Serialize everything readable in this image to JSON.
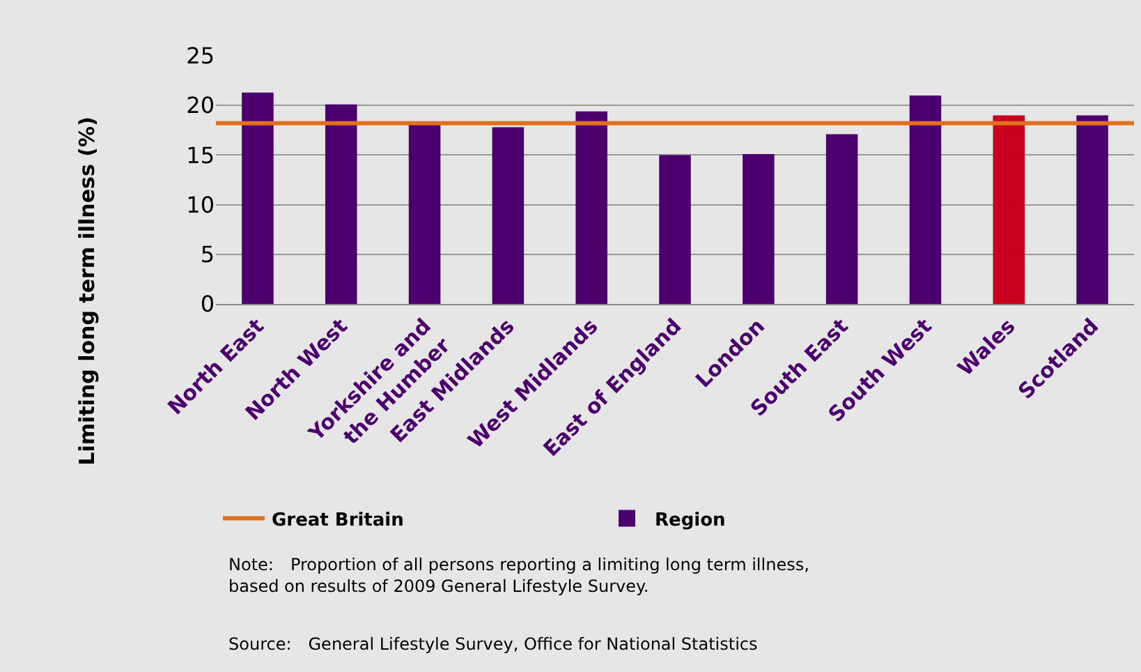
{
  "chart_data": {
    "type": "bar",
    "ylabel": "Limiting long term illness (%)",
    "categories": [
      "North East",
      "North West",
      "Yorkshire and\nthe Humber",
      "East Midlands",
      "West Midlands",
      "East of England",
      "London",
      "South East",
      "South West",
      "Wales",
      "Scotland"
    ],
    "series": [
      {
        "name": "Region",
        "colors": [
          "#4b006e",
          "#4b006e",
          "#4b006e",
          "#4b006e",
          "#4b006e",
          "#4b006e",
          "#4b006e",
          "#4b006e",
          "#4b006e",
          "#c8001e",
          "#4b006e"
        ],
        "values": [
          21.3,
          20.1,
          18.2,
          17.8,
          19.4,
          15.0,
          15.1,
          17.1,
          21.0,
          19.0,
          19.0
        ]
      }
    ],
    "ref_lines": [
      {
        "axis": "y",
        "value": 18.2,
        "label": "Great Britain",
        "color": "#e0701e",
        "line_style": "solid"
      }
    ],
    "ylim": [
      0,
      25
    ],
    "yticks": [
      0,
      5,
      10,
      15,
      20,
      25
    ],
    "grid": "y",
    "legend": "bottom",
    "annotations": [
      "Note: Proportion of all persons reporting a limiting long term illness,\nbased on results of 2009 General Lifestyle Survey.",
      "Source: General Lifestyle Survey, Office for National Statistics"
    ]
  }
}
